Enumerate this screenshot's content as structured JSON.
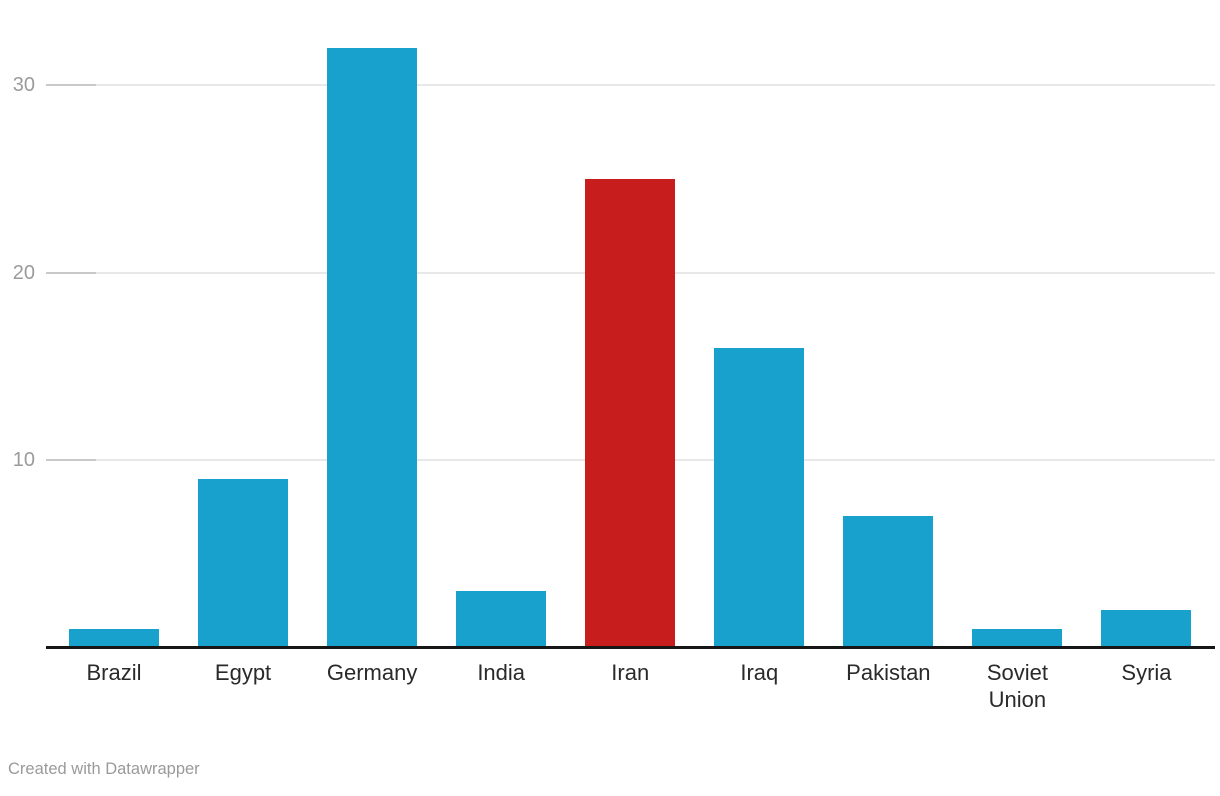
{
  "chart_data": {
    "type": "bar",
    "categories": [
      "Brazil",
      "Egypt",
      "Germany",
      "India",
      "Iran",
      "Iraq",
      "Pakistan",
      "Soviet Union",
      "Syria"
    ],
    "values": [
      1,
      9,
      32,
      3,
      25,
      16,
      7,
      1,
      2
    ],
    "title": "",
    "xlabel": "",
    "ylabel": "",
    "yticks": [
      10,
      20,
      30
    ],
    "ylim": [
      0,
      34
    ],
    "grid": true,
    "legend": "none",
    "default_bar_color": "#18a1cd",
    "highlight_category": "Iran",
    "highlight_color": "#c71e1d"
  },
  "colors": {
    "axis_line": "#161616",
    "gridline": "#e8e8e8",
    "tick_stub": "#c9c9c9",
    "y_tick_label": "#9b9b9b",
    "x_label": "#2a2a2a",
    "attribution": "#9a9a9a",
    "background": "#ffffff"
  },
  "attribution": {
    "label": "Created with Datawrapper"
  }
}
